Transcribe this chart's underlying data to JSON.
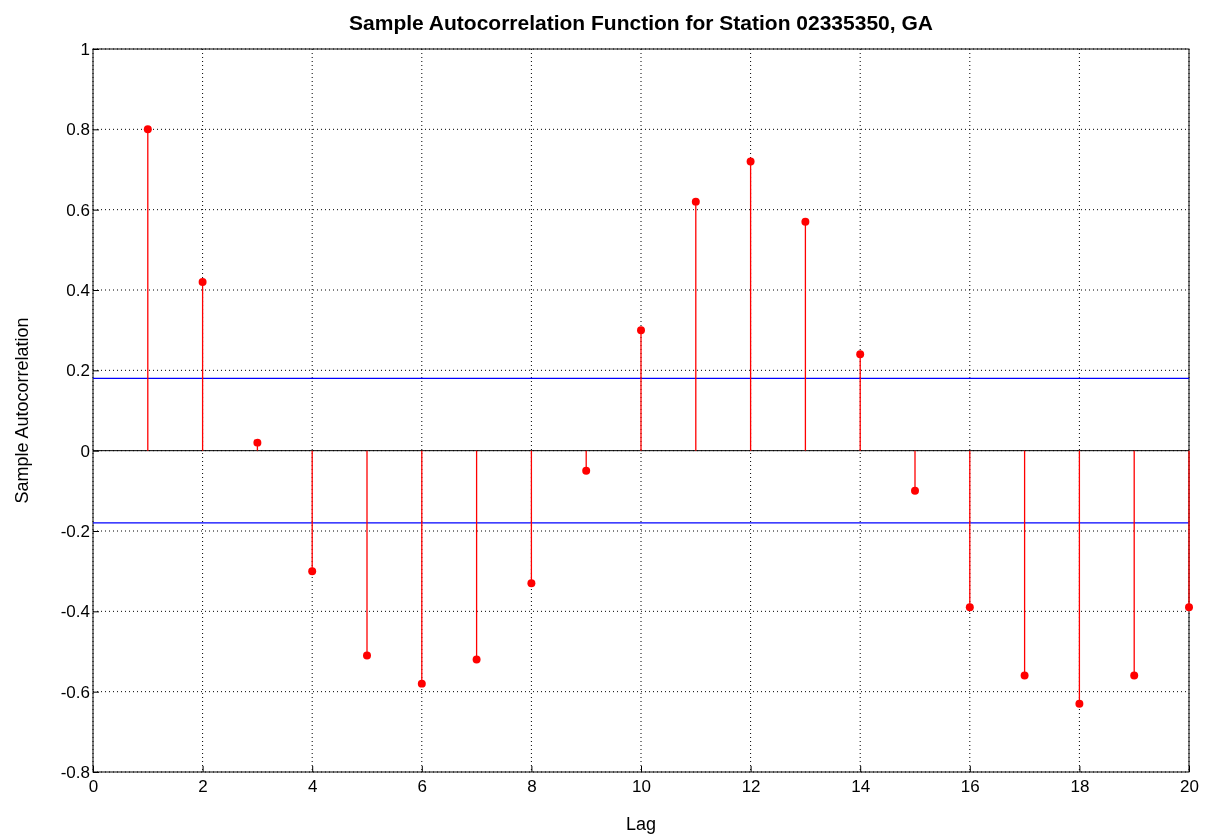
{
  "chart_data": {
    "type": "lollipop",
    "title": "Sample Autocorrelation Function for Station 02335350, GA",
    "xlabel": "Lag",
    "ylabel": "Sample Autocorrelation",
    "x": [
      1,
      2,
      3,
      4,
      5,
      6,
      7,
      8,
      9,
      10,
      11,
      12,
      13,
      14,
      15,
      16,
      17,
      18,
      19,
      20
    ],
    "values": [
      0.8,
      0.42,
      0.02,
      -0.3,
      -0.51,
      -0.58,
      -0.52,
      -0.33,
      -0.05,
      0.3,
      0.62,
      0.72,
      0.57,
      0.24,
      -0.1,
      -0.39,
      -0.56,
      -0.63,
      -0.56,
      -0.39
    ],
    "color": "#ff0000",
    "marker": "circle",
    "xlim": [
      0,
      20
    ],
    "ylim": [
      -0.8,
      1
    ],
    "xticks": [
      0,
      2,
      4,
      6,
      8,
      10,
      12,
      14,
      16,
      18,
      20
    ],
    "yticks": [
      -0.8,
      -0.6,
      -0.4,
      -0.2,
      0,
      0.2,
      0.4,
      0.6,
      0.8,
      1
    ],
    "grid": true,
    "ref_lines": [
      {
        "axis": "y",
        "value": 0.18,
        "color": "#0000ff"
      },
      {
        "axis": "y",
        "value": -0.18,
        "color": "#0000ff"
      }
    ]
  }
}
